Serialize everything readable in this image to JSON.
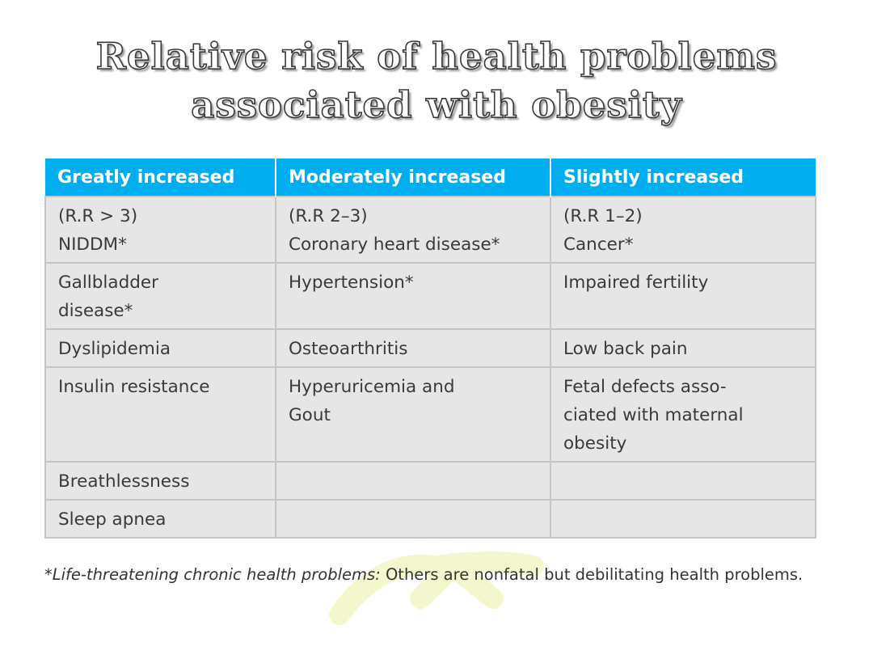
{
  "title": {
    "line1": "Relative risk of health problems",
    "line2": "associated with obesity"
  },
  "table": {
    "headers": [
      "Greatly increased",
      "Moderately increased",
      "Slightly increased"
    ],
    "header_color": "#00aeef",
    "rows": [
      [
        [
          "(R.R > 3)",
          "NIDDM*"
        ],
        [
          "(R.R 2–3)",
          "Coronary heart disease*"
        ],
        [
          "(R.R 1–2)",
          "Cancer*"
        ]
      ],
      [
        [
          "Gallbladder",
          "disease*"
        ],
        [
          "Hypertension*"
        ],
        [
          "Impaired fertility"
        ]
      ],
      [
        [
          "Dyslipidemia"
        ],
        [
          "Osteoarthritis"
        ],
        [
          "Low back pain"
        ]
      ],
      [
        [
          "Insulin resistance"
        ],
        [
          "Hyperuricemia and",
          "Gout"
        ],
        [
          "Fetal defects asso-",
          "ciated with maternal",
          "obesity"
        ]
      ],
      [
        [
          "Breathlessness"
        ],
        [],
        []
      ],
      [
        [
          "Sleep apnea"
        ],
        [],
        []
      ]
    ]
  },
  "footnote": {
    "italic": "*Life-threatening chronic health problems:",
    "text": " Others are nonfatal but debilitating health problems."
  }
}
